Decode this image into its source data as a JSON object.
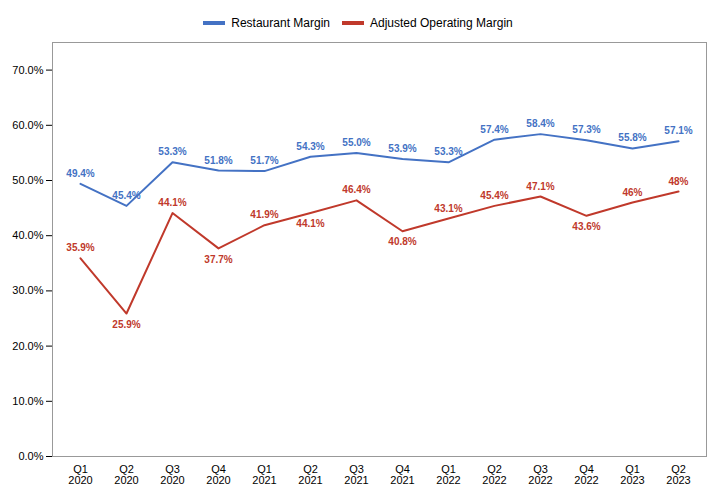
{
  "chart_data": {
    "type": "line",
    "categories": [
      "Q1\n2020",
      "Q2\n2020",
      "Q3\n2020",
      "Q4\n2020",
      "Q1\n2021",
      "Q2\n2021",
      "Q3\n2021",
      "Q4\n2021",
      "Q1\n2022",
      "Q2\n2022",
      "Q3\n2022",
      "Q4\n2022",
      "Q1\n2023",
      "Q2\n2023"
    ],
    "series": [
      {
        "name": "Restaurant Margin",
        "color": "#4472C4",
        "values": [
          49.4,
          45.4,
          53.3,
          51.8,
          51.7,
          54.3,
          55.0,
          53.9,
          53.3,
          57.4,
          58.4,
          57.3,
          55.8,
          57.1
        ],
        "value_labels": [
          "49.4%",
          "45.4%",
          "53.3%",
          "51.8%",
          "51.7%",
          "54.3%",
          "55.0%",
          "53.9%",
          "53.3%",
          "57.4%",
          "58.4%",
          "57.3%",
          "55.8%",
          "57.1%"
        ]
      },
      {
        "name": "Adjusted Operating Margin",
        "color": "#C0392B",
        "values": [
          35.9,
          25.9,
          44.1,
          37.7,
          41.9,
          44.1,
          46.4,
          40.8,
          43.1,
          45.4,
          47.1,
          43.6,
          46.0,
          48.0
        ],
        "value_labels": [
          "35.9%",
          "25.9%",
          "44.1%",
          "37.7%",
          "41.9%",
          "44.1%",
          "46.4%",
          "40.8%",
          "43.1%",
          "45.4%",
          "47.1%",
          "43.6%",
          "46%",
          "48%"
        ]
      }
    ],
    "ylim": [
      0,
      75
    ],
    "yticks": [
      {
        "value": 0,
        "label": "0.0%"
      },
      {
        "value": 10,
        "label": "10.0%"
      },
      {
        "value": 20,
        "label": "20.0%"
      },
      {
        "value": 30,
        "label": "30.0%"
      },
      {
        "value": 40,
        "label": "40.0%"
      },
      {
        "value": 50,
        "label": "50.0%"
      },
      {
        "value": 60,
        "label": "60.0%"
      },
      {
        "value": 70,
        "label": "70.0%"
      }
    ],
    "grid": false,
    "legend": "top",
    "data_labels": true
  }
}
